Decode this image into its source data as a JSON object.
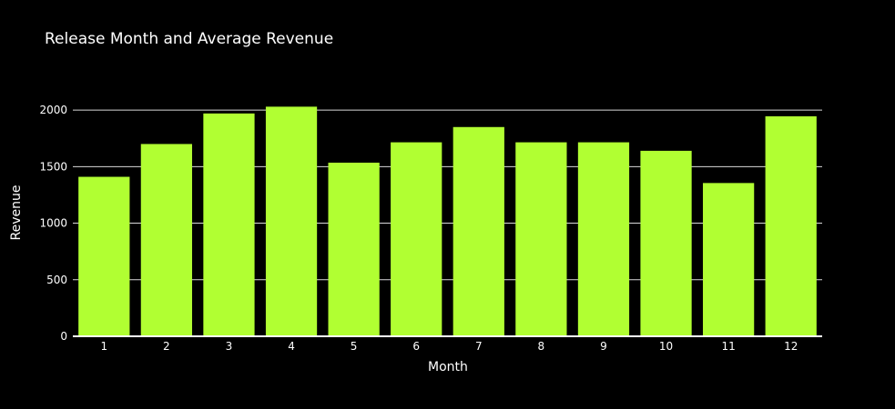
{
  "chart_data": {
    "type": "bar",
    "title": "Release Month and Average Revenue",
    "xlabel": "Month",
    "ylabel": "Revenue",
    "categories": [
      "1",
      "2",
      "3",
      "4",
      "5",
      "6",
      "7",
      "8",
      "9",
      "10",
      "11",
      "12"
    ],
    "values": [
      1410,
      1700,
      1970,
      2030,
      1535,
      1715,
      1850,
      1715,
      1715,
      1640,
      1355,
      1945
    ],
    "ylim": [
      0,
      2250
    ],
    "yticks": [
      0,
      500,
      1000,
      1500,
      2000
    ],
    "grid": true,
    "legend": "none",
    "colors": {
      "bar": "#b1ff32",
      "background": "#000000",
      "text": "#ffffff",
      "grid": "#ffffff"
    }
  }
}
